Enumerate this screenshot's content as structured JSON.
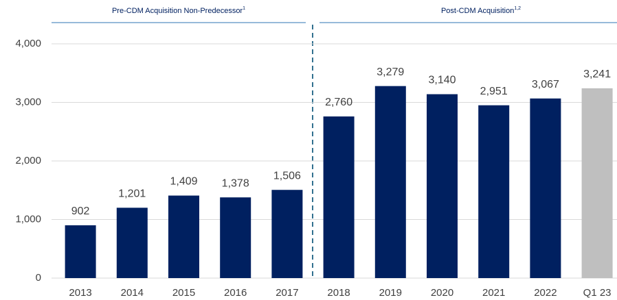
{
  "chart_data": {
    "type": "bar",
    "sections": [
      {
        "label": "Pre-CDM Acquisition Non-Predecessor",
        "note": "1"
      },
      {
        "label": "Post-CDM Acquisition",
        "note": "1,2"
      }
    ],
    "categories": [
      "2013",
      "2014",
      "2015",
      "2016",
      "2017",
      "2018",
      "2019",
      "2020",
      "2021",
      "2022",
      "Q1 23"
    ],
    "values": [
      902,
      1201,
      1409,
      1378,
      1506,
      2760,
      3279,
      3140,
      2951,
      3067,
      3241
    ],
    "value_labels": [
      "902",
      "1,201",
      "1,409",
      "1,378",
      "1,506",
      "2,760",
      "3,279",
      "3,140",
      "2,951",
      "3,067",
      "3,241"
    ],
    "colors": [
      "#002060",
      "#002060",
      "#002060",
      "#002060",
      "#002060",
      "#002060",
      "#002060",
      "#002060",
      "#002060",
      "#002060",
      "#bfbfbf"
    ],
    "ylim": [
      0,
      4000
    ],
    "yticks": [
      0,
      {
        "value": 1000,
        "label": "1,000"
      },
      {
        "value": 2000,
        "label": "2,000"
      },
      {
        "value": 3000,
        "label": "3,000"
      },
      {
        "value": 4000,
        "label": "4,000"
      }
    ],
    "grid": true
  }
}
